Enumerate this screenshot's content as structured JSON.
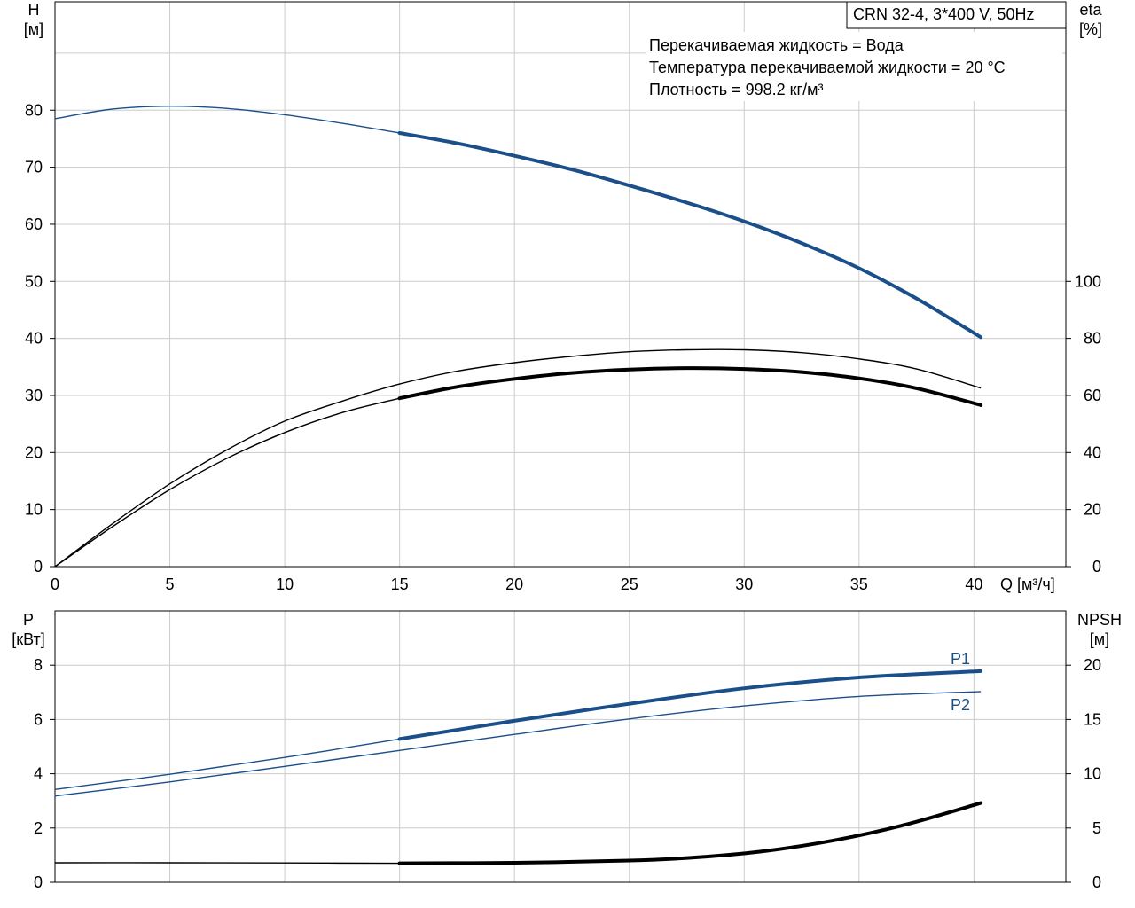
{
  "chart_data": [
    {
      "type": "line",
      "title": "CRN 32-4, 3*400 V, 50Hz",
      "annotations": [
        "Перекачиваемая жидкость = Вода",
        "Температура перекачиваемой жидкости = 20 °C",
        "Плотность = 998.2 кг/м³"
      ],
      "xlabel": "Q [м³/ч]",
      "xlim": [
        0,
        44
      ],
      "xticks": [
        0,
        5,
        10,
        15,
        20,
        25,
        30,
        35,
        40
      ],
      "yleft": {
        "label_line1": "H",
        "label_line2": "[м]",
        "lim": [
          0,
          99
        ],
        "ticks": [
          0,
          10,
          20,
          30,
          40,
          50,
          60,
          70,
          80
        ]
      },
      "yright": {
        "label_line1": "eta",
        "label_line2": "[%]",
        "lim": [
          0,
          198
        ],
        "ticks": [
          0,
          20,
          40,
          60,
          80,
          100
        ]
      },
      "colors": {
        "head": "#1a4f8a",
        "eta": "#000000",
        "grid": "#cccccc"
      },
      "series": [
        {
          "axis": "left",
          "color": "#1a4f8a",
          "thin": {
            "x": [
              0,
              2.5,
              5,
              7.5,
              10,
              12.5,
              15
            ],
            "y": [
              78.5,
              80.2,
              80.7,
              80.3,
              79.2,
              77.7,
              76.0
            ]
          },
          "thick": {
            "x": [
              15,
              17.5,
              20,
              22.5,
              25,
              27.5,
              30,
              32.5,
              35,
              37.5,
              40.3
            ],
            "y": [
              76.0,
              74.2,
              72.0,
              69.6,
              66.8,
              63.8,
              60.5,
              56.7,
              52.3,
              47.0,
              40.2
            ]
          }
        },
        {
          "axis": "right",
          "color": "#000000",
          "thin": {
            "x": [
              0,
              2.5,
              5,
              7.5,
              10,
              12.5,
              15,
              17.5,
              20,
              22.5,
              25,
              27.5,
              30,
              32.5,
              35,
              37.5,
              40.3
            ],
            "y": [
              0,
              15,
              29,
              41,
              51,
              58,
              64,
              68.5,
              71.5,
              73.7,
              75.3,
              76.0,
              76.0,
              75.0,
              72.8,
              69.3,
              62.6
            ]
          }
        },
        {
          "axis": "right",
          "color": "#000000",
          "thin": {
            "x": [
              0,
              2.5,
              5,
              7.5,
              10,
              12.5,
              15
            ],
            "y": [
              0,
              14,
              27,
              38,
              47,
              54,
              59
            ]
          },
          "thick": {
            "x": [
              15,
              17.5,
              20,
              22.5,
              25,
              27.5,
              30,
              32.5,
              35,
              37.5,
              40.3
            ],
            "y": [
              59,
              63,
              65.8,
              67.9,
              69.1,
              69.6,
              69.3,
              68.2,
              66.0,
              62.5,
              56.6
            ]
          }
        }
      ]
    },
    {
      "type": "line",
      "xlim": [
        0,
        44
      ],
      "xticks": [
        0,
        5,
        10,
        15,
        20,
        25,
        30,
        35,
        40
      ],
      "yleft": {
        "label_line1": "P",
        "label_line2": "[кВт]",
        "lim": [
          0,
          10
        ],
        "ticks": [
          0,
          2,
          4,
          6,
          8
        ]
      },
      "yright": {
        "label_line1": "NPSH",
        "label_line2": "[м]",
        "lim": [
          0,
          25
        ],
        "ticks": [
          0,
          5,
          10,
          15,
          20
        ]
      },
      "series": [
        {
          "name": "P1",
          "axis": "left",
          "color": "#1a4f8a",
          "thin": {
            "x": [
              0,
              5,
              10,
              15
            ],
            "y": [
              3.42,
              3.98,
              4.6,
              5.28
            ]
          },
          "thick": {
            "x": [
              15,
              20,
              25,
              30,
              35,
              40.3
            ],
            "y": [
              5.28,
              5.95,
              6.58,
              7.15,
              7.55,
              7.78
            ]
          }
        },
        {
          "name": "P2",
          "axis": "left",
          "color": "#1a4f8a",
          "thin": {
            "x": [
              0,
              5,
              10,
              15,
              20,
              25,
              30,
              35,
              40.3
            ],
            "y": [
              3.18,
              3.7,
              4.27,
              4.86,
              5.45,
              6.02,
              6.5,
              6.85,
              7.03
            ]
          }
        },
        {
          "axis": "right",
          "color": "#000000",
          "thin": {
            "x": [
              0,
              5,
              10,
              15
            ],
            "y": [
              1.8,
              1.8,
              1.78,
              1.75
            ]
          },
          "thick": {
            "x": [
              15,
              20,
              25,
              28,
              31,
              34,
              37,
              40.3
            ],
            "y": [
              1.75,
              1.8,
              2.0,
              2.3,
              2.9,
              3.9,
              5.3,
              7.3
            ]
          }
        }
      ]
    }
  ]
}
